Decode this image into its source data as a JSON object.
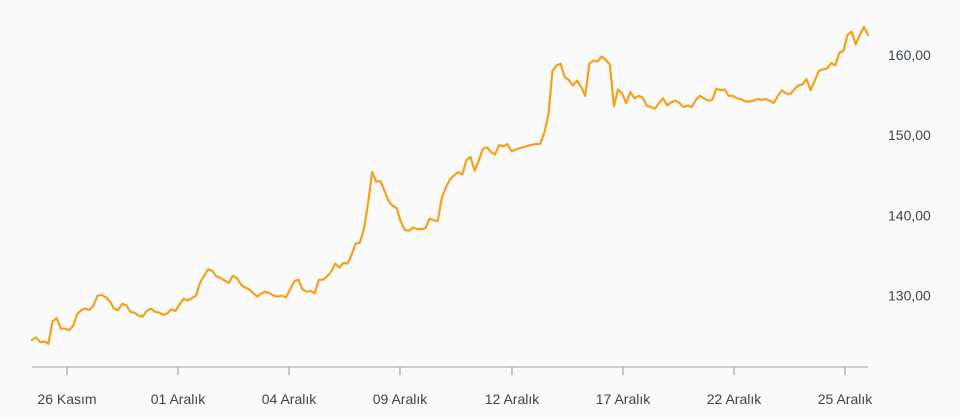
{
  "colors": {
    "background": "#fafafa",
    "line": "#f4a11c",
    "axis": "#9aa4b1",
    "tick_text": "#3c4450"
  },
  "chart_data": {
    "type": "line",
    "title": "",
    "xlabel": "",
    "ylabel": "",
    "x_tick_labels": [
      "26 Kasım",
      "01 Aralık",
      "04 Aralık",
      "09 Aralık",
      "12 Aralık",
      "17 Aralık",
      "22 Aralık",
      "25 Aralık"
    ],
    "y_tick_labels": [
      "130,00",
      "140,00",
      "150,00",
      "160,00"
    ],
    "y_ticks": [
      130,
      140,
      150,
      160
    ],
    "ylim": [
      119.5,
      165.6
    ],
    "y_axis_position": "right",
    "grid": false,
    "series": [
      {
        "values": [
          124.5,
          124.8,
          124.2,
          124.3,
          124.0,
          126.8,
          127.2,
          125.9,
          125.9,
          125.7,
          126.2,
          127.7,
          128.2,
          128.4,
          128.2,
          128.8,
          130.0,
          130.1,
          129.8,
          129.3,
          128.4,
          128.2,
          129.0,
          128.8,
          128.0,
          127.9,
          127.5,
          127.4,
          128.1,
          128.4,
          128.0,
          127.9,
          127.6,
          127.8,
          128.3,
          128.1,
          128.9,
          129.6,
          129.4,
          129.7,
          130.0,
          131.6,
          132.5,
          133.3,
          133.1,
          132.4,
          132.2,
          131.9,
          131.6,
          132.5,
          132.2,
          131.4,
          131.0,
          130.8,
          130.3,
          129.9,
          130.3,
          130.5,
          130.3,
          130.0,
          129.9,
          130.0,
          129.8,
          130.8,
          131.8,
          132.0,
          130.8,
          130.5,
          130.6,
          130.3,
          132.0,
          132.0,
          132.4,
          133.0,
          134.0,
          133.5,
          134.1,
          134.0,
          135.1,
          136.5,
          136.6,
          138.3,
          141.5,
          145.4,
          144.2,
          144.3,
          143.1,
          141.8,
          141.2,
          140.9,
          139.2,
          138.2,
          138.1,
          138.5,
          138.3,
          138.3,
          138.4,
          139.6,
          139.4,
          139.3,
          142.2,
          143.5,
          144.5,
          145.0,
          145.4,
          145.1,
          146.9,
          147.3,
          145.6,
          146.8,
          148.3,
          148.5,
          147.9,
          147.6,
          148.8,
          148.6,
          148.9,
          148.0,
          148.2,
          148.4,
          148.5,
          148.7,
          148.8,
          148.9,
          148.9,
          150.3,
          152.5,
          158.0,
          158.7,
          158.9,
          157.2,
          156.9,
          156.2,
          156.8,
          156.0,
          154.9,
          158.9,
          159.3,
          159.2,
          159.8,
          159.4,
          158.8,
          153.6,
          155.7,
          155.2,
          154.0,
          155.4,
          154.6,
          154.9,
          154.7,
          153.7,
          153.5,
          153.3,
          154.0,
          154.6,
          153.7,
          154.1,
          154.3,
          154.0,
          153.5,
          153.7,
          153.5,
          154.4,
          154.9,
          154.6,
          154.3,
          154.4,
          155.8,
          155.6,
          155.7,
          154.9,
          154.9,
          154.6,
          154.5,
          154.2,
          154.2,
          154.3,
          154.5,
          154.4,
          154.5,
          154.3,
          154.0,
          154.9,
          155.6,
          155.2,
          155.1,
          155.7,
          156.2,
          156.3,
          157.0,
          155.6,
          156.8,
          158.0,
          158.2,
          158.3,
          159.0,
          158.7,
          160.3,
          160.5,
          162.5,
          162.9,
          161.3,
          162.5,
          163.5,
          162.5
        ]
      }
    ]
  }
}
